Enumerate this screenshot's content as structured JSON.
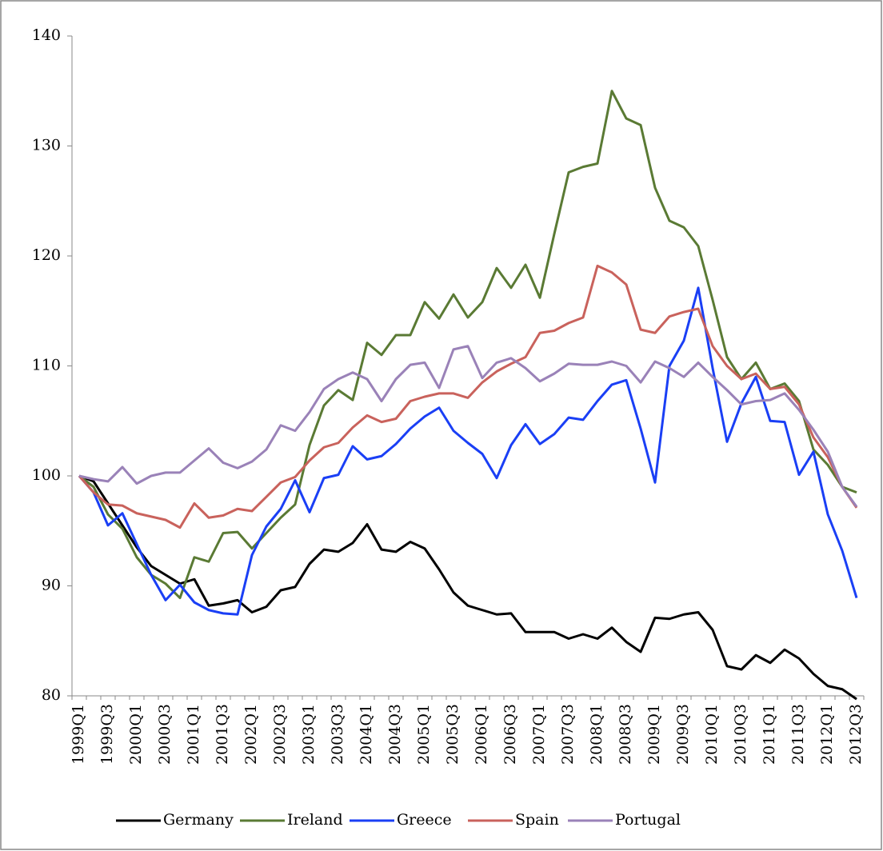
{
  "chart_data": {
    "type": "line",
    "categories": [
      "1999Q1",
      null,
      "1999Q3",
      null,
      "2000Q1",
      null,
      "2000Q3",
      null,
      "2001Q1",
      null,
      "2001Q3",
      null,
      "2002Q1",
      null,
      "2002Q3",
      null,
      "2003Q1",
      null,
      "2003Q3",
      null,
      "2004Q1",
      null,
      "2004Q3",
      null,
      "2005Q1",
      null,
      "2005Q3",
      null,
      "2006Q1",
      null,
      "2006Q3",
      null,
      "2007Q1",
      null,
      "2007Q3",
      null,
      "2008Q1",
      null,
      "2008Q3",
      null,
      "2009Q1",
      null,
      "2009Q3",
      null,
      "2010Q1",
      null,
      "2010Q3",
      null,
      "2011Q1",
      null,
      "2011Q3",
      null,
      "2012Q1",
      null,
      "2012Q3"
    ],
    "series": [
      {
        "name": "Germany",
        "color": "#000000",
        "values": [
          100,
          99.5,
          97.5,
          95.5,
          93.5,
          91.8,
          91,
          90.2,
          90.6,
          88.2,
          88.4,
          88.7,
          87.6,
          88.1,
          89.6,
          89.9,
          92,
          93.3,
          93.1,
          93.9,
          95.6,
          93.3,
          93.1,
          94,
          93.4,
          91.5,
          89.4,
          88.2,
          87.8,
          87.4,
          87.5,
          85.8,
          85.8,
          85.8,
          85.2,
          85.6,
          85.2,
          86.2,
          84.9,
          84,
          87.1,
          87,
          87.4,
          87.6,
          86,
          82.7,
          82.4,
          83.7,
          83,
          84.2,
          83.4,
          82,
          80.9,
          80.6,
          79.7
        ]
      },
      {
        "name": "Ireland",
        "color": "#5a7a34",
        "values": [
          100,
          99,
          96.5,
          95.2,
          92.6,
          91,
          90.2,
          88.9,
          92.6,
          92.2,
          94.8,
          94.9,
          93.4,
          94.8,
          96.2,
          97.4,
          102.8,
          106.4,
          107.8,
          106.9,
          112.1,
          111,
          112.8,
          112.8,
          115.8,
          114.3,
          116.5,
          114.4,
          115.8,
          118.9,
          117.1,
          119.2,
          116.2,
          122,
          127.6,
          128.1,
          128.4,
          135,
          132.5,
          131.9,
          126.2,
          123.2,
          122.6,
          120.9,
          116,
          110.8,
          108.8,
          110.3,
          107.9,
          108.4,
          106.8,
          102.4,
          101,
          99,
          98.5
        ]
      },
      {
        "name": "Greece",
        "color": "#1a3ff5",
        "values": [
          100,
          98.5,
          95.5,
          96.6,
          93.8,
          91,
          88.7,
          90.1,
          88.5,
          87.8,
          87.5,
          87.4,
          92.8,
          95.4,
          97,
          99.6,
          96.7,
          99.8,
          100.1,
          102.7,
          101.5,
          101.8,
          102.9,
          104.3,
          105.4,
          106.2,
          104.1,
          103,
          102,
          99.8,
          102.8,
          104.7,
          102.9,
          103.8,
          105.3,
          105.1,
          106.8,
          108.3,
          108.7,
          104.3,
          99.4,
          110,
          112.3,
          117.1,
          109.8,
          103.1,
          106.6,
          109,
          105,
          104.9,
          100.1,
          102.2,
          96.5,
          93.2,
          88.9
        ]
      },
      {
        "name": "Spain",
        "color": "#c9625c",
        "values": [
          100,
          98.5,
          97.4,
          97.3,
          96.6,
          96.3,
          96,
          95.3,
          97.5,
          96.2,
          96.4,
          97,
          96.8,
          98.1,
          99.4,
          99.9,
          101.4,
          102.6,
          103,
          104.4,
          105.5,
          104.9,
          105.2,
          106.8,
          107.2,
          107.5,
          107.5,
          107.1,
          108.5,
          109.5,
          110.2,
          110.8,
          113,
          113.2,
          113.9,
          114.4,
          119.1,
          118.5,
          117.4,
          113.3,
          113,
          114.5,
          114.9,
          115.2,
          111.8,
          110,
          108.8,
          109.3,
          107.9,
          108.1,
          106.5,
          103.5,
          101.7,
          99,
          97.1
        ]
      },
      {
        "name": "Portugal",
        "color": "#9a82b8",
        "values": [
          100,
          99.7,
          99.5,
          100.8,
          99.3,
          100,
          100.3,
          100.3,
          101.4,
          102.5,
          101.2,
          100.7,
          101.3,
          102.4,
          104.6,
          104.1,
          105.8,
          107.9,
          108.8,
          109.4,
          108.8,
          106.8,
          108.8,
          110.1,
          110.3,
          108,
          111.5,
          111.8,
          108.9,
          110.3,
          110.7,
          109.8,
          108.6,
          109.3,
          110.2,
          110.1,
          110.1,
          110.4,
          110,
          108.5,
          110.4,
          109.8,
          109,
          110.3,
          109,
          107.8,
          106.5,
          106.8,
          106.9,
          107.5,
          106,
          104.2,
          102.2,
          99,
          97.2
        ]
      }
    ],
    "ylim": [
      80,
      140
    ],
    "yticks": [
      80,
      90,
      100,
      110,
      120,
      130,
      140
    ],
    "grid": false,
    "legend": "bottom"
  }
}
